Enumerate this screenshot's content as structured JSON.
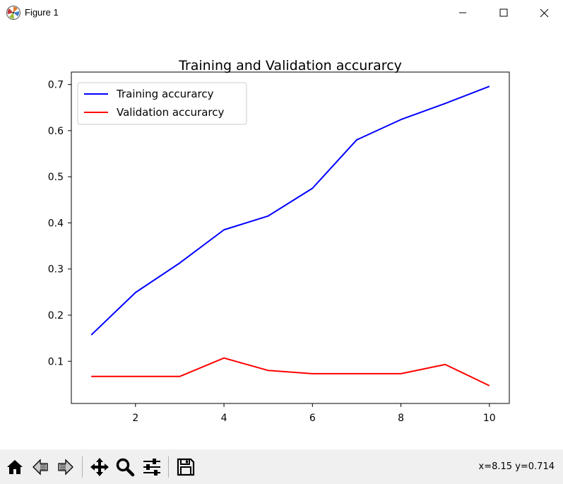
{
  "window": {
    "title": "Figure 1",
    "controls": [
      "minimize",
      "maximize",
      "close"
    ]
  },
  "toolbar": {
    "buttons": [
      {
        "name": "home",
        "icon": "home-icon"
      },
      {
        "name": "back",
        "icon": "back-arrow-icon"
      },
      {
        "name": "forward",
        "icon": "forward-arrow-icon"
      },
      {
        "name": "pan",
        "icon": "move-icon"
      },
      {
        "name": "zoom",
        "icon": "magnifier-icon"
      },
      {
        "name": "configure-subplots",
        "icon": "sliders-icon"
      },
      {
        "name": "save",
        "icon": "floppy-disk-icon"
      }
    ],
    "coordinates": "x=8.15 y=0.714"
  },
  "chart_data": {
    "type": "line",
    "title": "Training and Validation accurarcy",
    "xlabel": "",
    "ylabel": "",
    "xlim": [
      0.55,
      10.45
    ],
    "ylim": [
      0.0085,
      0.727
    ],
    "xticks": [
      2,
      4,
      6,
      8,
      10
    ],
    "yticks": [
      0.1,
      0.2,
      0.3,
      0.4,
      0.5,
      0.6,
      0.7
    ],
    "legend_position": "top-left",
    "grid": false,
    "x": [
      1,
      2,
      3,
      4,
      5,
      6,
      7,
      8,
      9,
      10
    ],
    "series": [
      {
        "name": "Training accurarcy",
        "color": "#0000ff",
        "values": [
          0.157,
          0.249,
          0.313,
          0.385,
          0.415,
          0.475,
          0.58,
          0.624,
          0.659,
          0.696
        ]
      },
      {
        "name": "Validation accurarcy",
        "color": "#ff0000",
        "values": [
          0.067,
          0.067,
          0.067,
          0.107,
          0.08,
          0.073,
          0.073,
          0.073,
          0.093,
          0.047
        ]
      }
    ]
  }
}
